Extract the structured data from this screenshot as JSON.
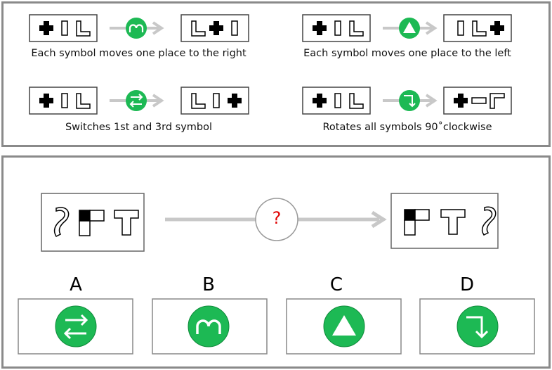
{
  "rules": [
    {
      "caption": "Each symbol moves one place to the right",
      "icon": "arc-icon"
    },
    {
      "caption": "Each symbol moves one place to the left",
      "icon": "triangle-icon"
    },
    {
      "caption": "Switches 1st and 3rd symbol",
      "icon": "swap-arrows-icon"
    },
    {
      "caption": "Rotates all symbols 90˚clockwise",
      "icon": "turn-arrow-icon"
    }
  ],
  "question": {
    "mark": "?"
  },
  "options": [
    {
      "letter": "A",
      "icon": "swap-arrows-icon"
    },
    {
      "letter": "B",
      "icon": "arc-icon"
    },
    {
      "letter": "C",
      "icon": "triangle-icon"
    },
    {
      "letter": "D",
      "icon": "turn-arrow-icon"
    }
  ],
  "colors": {
    "accent_green": "#1db954",
    "panel_border": "#8a8a8a",
    "arrow_gray": "#c8c8c8",
    "question_red": "#e00000"
  }
}
